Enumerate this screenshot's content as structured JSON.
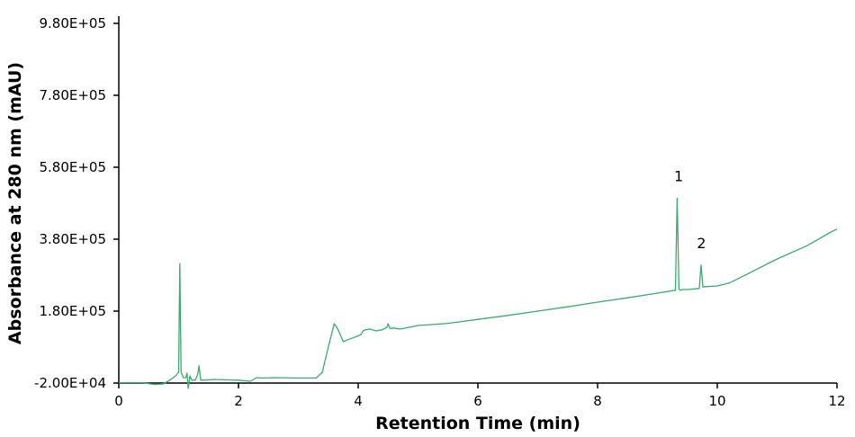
{
  "chart_data": {
    "type": "line",
    "xlabel": "Retention Time (min)",
    "ylabel": "Absorbance at 280 nm (mAU)",
    "xlim": [
      0,
      12
    ],
    "ylim": [
      -20000,
      980000
    ],
    "x_ticks": [
      0,
      2,
      4,
      6,
      8,
      10,
      12
    ],
    "x_tick_labels": [
      "0",
      "2",
      "4",
      "6",
      "8",
      "10",
      "12"
    ],
    "y_ticks": [
      -20000,
      180000,
      380000,
      580000,
      780000,
      980000
    ],
    "y_tick_labels": [
      "-2.00E+04",
      "1.80E+05",
      "3.80E+05",
      "5.80E+05",
      "7.80E+05",
      "9.80E+05"
    ],
    "grid": false,
    "legend": "none",
    "colors": {
      "trace": "#3aaa6e",
      "axis": "#000000"
    },
    "series": [
      {
        "x": [
          0,
          0.4,
          0.6,
          0.75,
          0.85,
          0.95,
          1.0,
          1.02,
          1.04,
          1.08,
          1.12,
          1.14,
          1.16,
          1.19,
          1.22,
          1.28,
          1.32,
          1.34,
          1.37,
          1.4,
          1.6,
          2.0,
          2.2,
          2.3,
          2.4,
          2.6,
          3.0,
          3.3,
          3.4,
          3.5,
          3.6,
          3.66,
          3.75,
          3.85,
          3.95,
          4.05,
          4.08,
          4.12,
          4.2,
          4.3,
          4.4,
          4.48,
          4.5,
          4.53,
          4.6,
          4.7,
          5.0,
          5.5,
          6.0,
          6.5,
          7.0,
          7.5,
          8.0,
          8.5,
          9.0,
          9.3,
          9.33,
          9.36,
          9.38,
          9.42,
          9.5,
          9.7,
          9.73,
          9.76,
          9.8,
          10.0,
          10.2,
          10.5,
          11.0,
          11.5,
          11.9,
          12.0
        ],
        "y": [
          -19000,
          -19000,
          -24000,
          -22000,
          -12000,
          0,
          10000,
          312000,
          10000,
          -5000,
          -5000,
          8000,
          -35000,
          0,
          -12000,
          -12000,
          5000,
          28000,
          -12000,
          -12000,
          -10000,
          -12000,
          -15000,
          -5000,
          -6000,
          -5000,
          -6000,
          -6000,
          10000,
          80000,
          145000,
          130000,
          95000,
          102000,
          108000,
          115000,
          125000,
          128000,
          130000,
          125000,
          128000,
          135000,
          145000,
          132000,
          133000,
          130000,
          140000,
          146000,
          157000,
          168000,
          180000,
          192000,
          205000,
          217000,
          230000,
          238000,
          494000,
          242000,
          238000,
          240000,
          240000,
          243000,
          308000,
          247000,
          248000,
          250000,
          258000,
          283000,
          325000,
          362000,
          400000,
          408000
        ]
      }
    ],
    "annotations": [
      {
        "text": "1",
        "x": 9.37,
        "y": 494000
      },
      {
        "text": "2",
        "x": 9.75,
        "y": 308000
      }
    ]
  }
}
